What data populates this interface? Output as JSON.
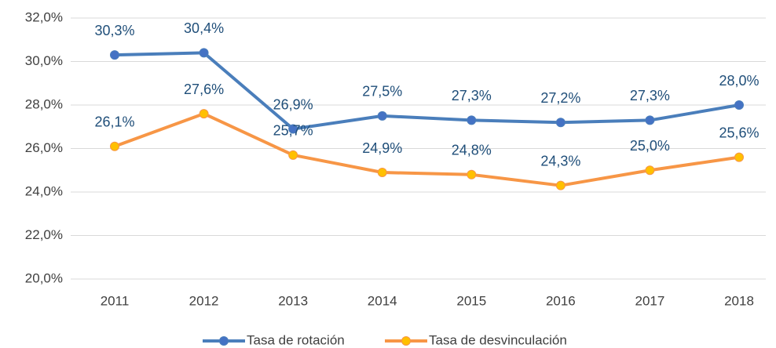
{
  "chart_data": {
    "type": "line",
    "categories": [
      "2011",
      "2012",
      "2013",
      "2014",
      "2015",
      "2016",
      "2017",
      "2018"
    ],
    "series": [
      {
        "name": "Tasa de rotación",
        "color": "#4a7ebb",
        "marker_color": "#4472c4",
        "values": [
          30.3,
          30.4,
          26.9,
          27.5,
          27.3,
          27.2,
          27.3,
          28.0
        ],
        "value_labels": [
          "30,3%",
          "30,4%",
          "26,9%",
          "27,5%",
          "27,3%",
          "27,2%",
          "27,3%",
          "28,0%"
        ]
      },
      {
        "name": "Tasa de desvinculación",
        "color": "#f79646",
        "marker_color": "#ffc000",
        "values": [
          26.1,
          27.6,
          25.7,
          24.9,
          24.8,
          24.3,
          25.0,
          25.6
        ],
        "value_labels": [
          "26,1%",
          "27,6%",
          "25,7%",
          "24,9%",
          "24,8%",
          "24,3%",
          "25,0%",
          "25,6%"
        ]
      }
    ],
    "ylim": [
      20,
      32
    ],
    "yticks": [
      {
        "value": 20,
        "label": "20,0%"
      },
      {
        "value": 22,
        "label": "22,0%"
      },
      {
        "value": 24,
        "label": "24,0%"
      },
      {
        "value": 26,
        "label": "26,0%"
      },
      {
        "value": 28,
        "label": "28,0%"
      },
      {
        "value": 30,
        "label": "30,0%"
      },
      {
        "value": 32,
        "label": "32,0%"
      }
    ],
    "grid": true,
    "legend": "bottom"
  }
}
